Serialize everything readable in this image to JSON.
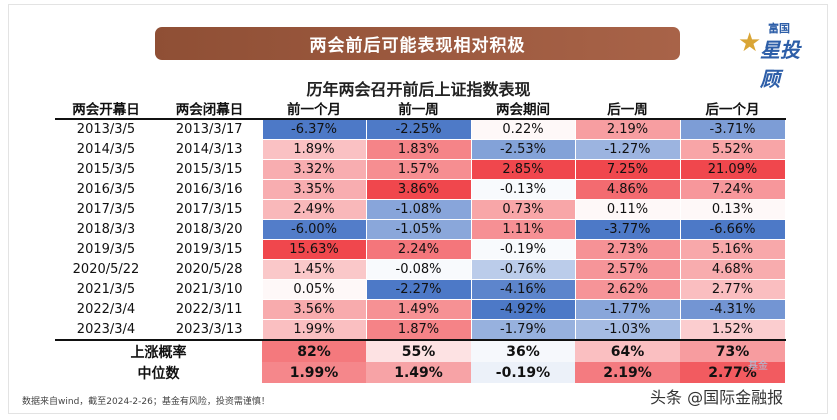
{
  "banner_title": "两会前后可能表现相对积极",
  "logo": {
    "top": "富国",
    "main": "星投顾",
    "star": "★"
  },
  "subtitle": "历年两会召开前后上证指数表现",
  "headers": [
    "两会开幕日",
    "两会闭幕日",
    "前一个月",
    "前一周",
    "两会期间",
    "后一周",
    "后一个月"
  ],
  "rows": [
    {
      "open": "2013/3/5",
      "close": "2013/3/17",
      "m1b": "-6.37%",
      "w1b": "-2.25%",
      "during": "0.22%",
      "w1a": "2.19%",
      "m1a": "-3.71%"
    },
    {
      "open": "2014/3/5",
      "close": "2014/3/13",
      "m1b": "1.89%",
      "w1b": "1.83%",
      "during": "-2.53%",
      "w1a": "-1.27%",
      "m1a": "5.52%"
    },
    {
      "open": "2015/3/5",
      "close": "2015/3/15",
      "m1b": "3.32%",
      "w1b": "1.57%",
      "during": "2.85%",
      "w1a": "7.25%",
      "m1a": "21.09%"
    },
    {
      "open": "2016/3/5",
      "close": "2016/3/16",
      "m1b": "3.35%",
      "w1b": "3.86%",
      "during": "-0.13%",
      "w1a": "4.86%",
      "m1a": "7.24%"
    },
    {
      "open": "2017/3/5",
      "close": "2017/3/15",
      "m1b": "2.49%",
      "w1b": "-1.08%",
      "during": "0.73%",
      "w1a": "0.11%",
      "m1a": "0.13%"
    },
    {
      "open": "2018/3/3",
      "close": "2018/3/20",
      "m1b": "-6.00%",
      "w1b": "-1.05%",
      "during": "1.11%",
      "w1a": "-3.77%",
      "m1a": "-6.66%"
    },
    {
      "open": "2019/3/5",
      "close": "2019/3/15",
      "m1b": "15.63%",
      "w1b": "2.24%",
      "during": "-0.19%",
      "w1a": "2.73%",
      "m1a": "5.16%"
    },
    {
      "open": "2020/5/22",
      "close": "2020/5/28",
      "m1b": "1.45%",
      "w1b": "-0.08%",
      "during": "-0.76%",
      "w1a": "2.57%",
      "m1a": "4.68%"
    },
    {
      "open": "2021/3/5",
      "close": "2021/3/10",
      "m1b": "0.05%",
      "w1b": "-2.27%",
      "during": "-4.16%",
      "w1a": "2.62%",
      "m1a": "2.77%"
    },
    {
      "open": "2022/3/4",
      "close": "2022/3/11",
      "m1b": "3.56%",
      "w1b": "1.49%",
      "during": "-4.92%",
      "w1a": "-1.77%",
      "m1a": "-4.31%"
    },
    {
      "open": "2023/3/4",
      "close": "2023/3/13",
      "m1b": "1.99%",
      "w1b": "1.87%",
      "during": "-1.79%",
      "w1a": "-1.03%",
      "m1a": "1.52%"
    }
  ],
  "summary": [
    {
      "label": "上涨概率",
      "m1b": "82%",
      "w1b": "55%",
      "during": "36%",
      "w1a": "64%",
      "m1a": "73%"
    },
    {
      "label": "中位数",
      "m1b": "1.99%",
      "w1b": "1.49%",
      "during": "-0.19%",
      "w1a": "2.19%",
      "m1a": "2.77%"
    }
  ],
  "footnote": "数据来自wind，截至2024-2-26；基金有风险，投资需谨慎！",
  "watermark": "头条 @国际金融报",
  "watermark_fund": "基金",
  "colors": {
    "banner": "#9c5a3f",
    "positive": "#f0474d",
    "negative": "#4d79c7",
    "logo_blue": "#2d5ea8",
    "logo_gold": "#d9a536"
  }
}
